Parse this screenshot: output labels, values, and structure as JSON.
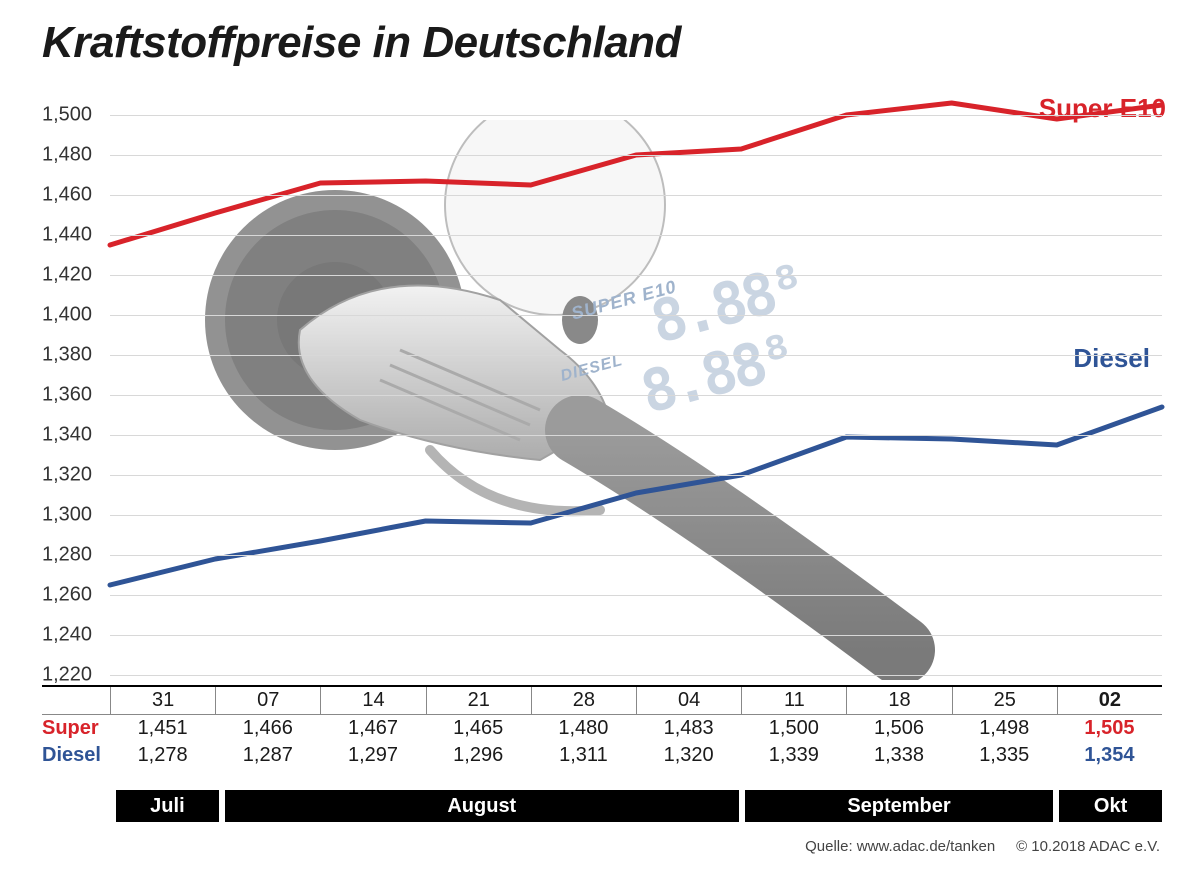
{
  "title": "Kraftstoffpreise in Deutschland",
  "credit_source": "Quelle: www.adac.de/tanken",
  "credit_copyright": "© 10.2018  ADAC e.V.",
  "chart": {
    "type": "line",
    "y_min": 1.22,
    "y_max": 1.51,
    "y_ticks": [
      "1,220",
      "1,240",
      "1,260",
      "1,280",
      "1,300",
      "1,320",
      "1,340",
      "1,360",
      "1,380",
      "1,400",
      "1,420",
      "1,440",
      "1,460",
      "1,480",
      "1,500"
    ],
    "y_tick_values": [
      1.22,
      1.24,
      1.26,
      1.28,
      1.3,
      1.32,
      1.34,
      1.36,
      1.38,
      1.4,
      1.42,
      1.44,
      1.46,
      1.48,
      1.5
    ],
    "grid_color": "#d8d8d8",
    "background_color": "#ffffff",
    "x_points": 11,
    "series": {
      "super": {
        "label": "Super E10",
        "color": "#d8232a",
        "line_width": 5,
        "values": [
          1.435,
          1.451,
          1.466,
          1.467,
          1.465,
          1.48,
          1.483,
          1.5,
          1.506,
          1.498,
          1.505
        ]
      },
      "diesel": {
        "label": "Diesel",
        "color": "#2f5496",
        "line_width": 5,
        "values": [
          1.265,
          1.278,
          1.287,
          1.297,
          1.296,
          1.311,
          1.32,
          1.339,
          1.338,
          1.335,
          1.354
        ]
      }
    }
  },
  "table": {
    "dates": [
      "31",
      "07",
      "14",
      "21",
      "28",
      "04",
      "11",
      "18",
      "25",
      "02"
    ],
    "highlight_index": 9,
    "rows": {
      "super": {
        "label": "Super",
        "color": "#d8232a",
        "values": [
          "1,451",
          "1,466",
          "1,467",
          "1,465",
          "1,480",
          "1,483",
          "1,500",
          "1,506",
          "1,498",
          "1,505"
        ]
      },
      "diesel": {
        "label": "Diesel",
        "color": "#2f5496",
        "values": [
          "1,278",
          "1,287",
          "1,297",
          "1,296",
          "1,311",
          "1,320",
          "1,339",
          "1,338",
          "1,335",
          "1,354"
        ]
      }
    }
  },
  "months": [
    {
      "label": "Juli",
      "span": 1
    },
    {
      "label": "August",
      "span": 5
    },
    {
      "label": "September",
      "span": 3
    },
    {
      "label": "Okt",
      "span": 1
    }
  ],
  "watermark": {
    "super_label": "SUPER E10",
    "diesel_label": "DIESEL"
  }
}
